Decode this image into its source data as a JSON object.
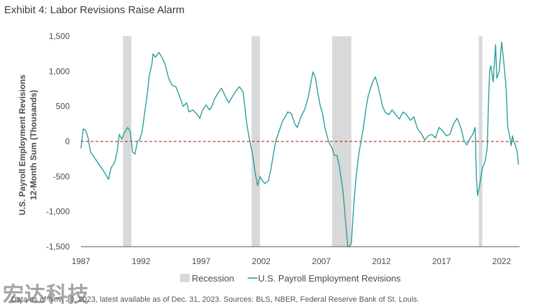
{
  "title": "Exhibit 4: Labor Revisions Raise Alarm",
  "source_note": "Data as of Nov. 30, 2023, latest available as of Dec. 31, 2023. Sources: BLS, NBER, Federal Reserve Bank of St. Louis.",
  "watermark": "宏达科技",
  "colors": {
    "line": "#2a9d9d",
    "recession": "#d9d9d9",
    "zero_line": "#c0392b"
  },
  "chart_data": {
    "type": "line",
    "title": "Exhibit 4: Labor Revisions Raise Alarm",
    "ylabel_lines": [
      "U.S. Payroll Employment Revisions",
      "12-Month Sum (Thousands)"
    ],
    "xlabel": "",
    "x_ticks": [
      "1987",
      "1992",
      "1997",
      "2002",
      "2007",
      "2012",
      "2017",
      "2022"
    ],
    "y_ticks": [
      "1,500",
      "1,000",
      "500",
      "0",
      "-500",
      "-1,000",
      "-1,500"
    ],
    "ylim": [
      -1500,
      1500
    ],
    "xlim": [
      1987,
      2023.5
    ],
    "zero_line": "dashed red at 0",
    "legend": {
      "position": "bottom-center",
      "items": [
        "Recession",
        "U.S. Payroll Employment Revisions"
      ]
    },
    "recessions": [
      [
        1990.5,
        1991.2
      ],
      [
        2001.2,
        2001.9
      ],
      [
        2007.9,
        2009.5
      ],
      [
        2020.1,
        2020.4
      ]
    ],
    "series": [
      {
        "name": "U.S. Payroll Employment Revisions",
        "points": [
          [
            1987.0,
            -100
          ],
          [
            1987.2,
            180
          ],
          [
            1987.4,
            160
          ],
          [
            1987.6,
            50
          ],
          [
            1987.8,
            -150
          ],
          [
            1988.2,
            -250
          ],
          [
            1988.6,
            -350
          ],
          [
            1989.0,
            -450
          ],
          [
            1989.3,
            -540
          ],
          [
            1989.5,
            -380
          ],
          [
            1989.8,
            -300
          ],
          [
            1990.0,
            -160
          ],
          [
            1990.2,
            100
          ],
          [
            1990.4,
            30
          ],
          [
            1990.6,
            120
          ],
          [
            1990.9,
            200
          ],
          [
            1991.1,
            140
          ],
          [
            1991.3,
            -150
          ],
          [
            1991.5,
            -180
          ],
          [
            1991.7,
            0
          ],
          [
            1991.9,
            30
          ],
          [
            1992.1,
            150
          ],
          [
            1992.3,
            400
          ],
          [
            1992.5,
            650
          ],
          [
            1992.7,
            950
          ],
          [
            1992.9,
            1100
          ],
          [
            1993.0,
            1250
          ],
          [
            1993.2,
            1200
          ],
          [
            1993.5,
            1270
          ],
          [
            1993.8,
            1180
          ],
          [
            1994.0,
            1100
          ],
          [
            1994.3,
            900
          ],
          [
            1994.6,
            800
          ],
          [
            1994.9,
            780
          ],
          [
            1995.2,
            650
          ],
          [
            1995.5,
            500
          ],
          [
            1995.8,
            550
          ],
          [
            1996.0,
            420
          ],
          [
            1996.3,
            450
          ],
          [
            1996.6,
            400
          ],
          [
            1996.9,
            330
          ],
          [
            1997.1,
            440
          ],
          [
            1997.4,
            520
          ],
          [
            1997.7,
            450
          ],
          [
            1997.9,
            500
          ],
          [
            1998.1,
            600
          ],
          [
            1998.4,
            690
          ],
          [
            1998.7,
            760
          ],
          [
            1999.0,
            650
          ],
          [
            1999.3,
            550
          ],
          [
            1999.6,
            640
          ],
          [
            1999.9,
            720
          ],
          [
            2000.2,
            780
          ],
          [
            2000.5,
            700
          ],
          [
            2000.8,
            250
          ],
          [
            2001.0,
            50
          ],
          [
            2001.3,
            -200
          ],
          [
            2001.5,
            -450
          ],
          [
            2001.7,
            -630
          ],
          [
            2001.9,
            -500
          ],
          [
            2002.1,
            -560
          ],
          [
            2002.3,
            -600
          ],
          [
            2002.6,
            -560
          ],
          [
            2002.8,
            -400
          ],
          [
            2003.0,
            -200
          ],
          [
            2003.2,
            0
          ],
          [
            2003.5,
            150
          ],
          [
            2003.8,
            300
          ],
          [
            2004.0,
            350
          ],
          [
            2004.2,
            420
          ],
          [
            2004.5,
            400
          ],
          [
            2004.8,
            250
          ],
          [
            2005.0,
            200
          ],
          [
            2005.3,
            350
          ],
          [
            2005.6,
            450
          ],
          [
            2005.9,
            620
          ],
          [
            2006.1,
            800
          ],
          [
            2006.3,
            990
          ],
          [
            2006.5,
            920
          ],
          [
            2006.7,
            700
          ],
          [
            2006.9,
            520
          ],
          [
            2007.1,
            400
          ],
          [
            2007.3,
            200
          ],
          [
            2007.6,
            0
          ],
          [
            2007.9,
            -100
          ],
          [
            2008.1,
            -200
          ],
          [
            2008.3,
            -200
          ],
          [
            2008.5,
            -350
          ],
          [
            2008.8,
            -700
          ],
          [
            2009.0,
            -1100
          ],
          [
            2009.2,
            -1500
          ],
          [
            2009.3,
            -1500
          ],
          [
            2009.5,
            -1450
          ],
          [
            2009.7,
            -900
          ],
          [
            2009.9,
            -500
          ],
          [
            2010.1,
            -200
          ],
          [
            2010.3,
            0
          ],
          [
            2010.5,
            200
          ],
          [
            2010.7,
            450
          ],
          [
            2010.9,
            650
          ],
          [
            2011.1,
            760
          ],
          [
            2011.3,
            860
          ],
          [
            2011.5,
            920
          ],
          [
            2011.7,
            800
          ],
          [
            2011.9,
            650
          ],
          [
            2012.1,
            500
          ],
          [
            2012.3,
            420
          ],
          [
            2012.6,
            380
          ],
          [
            2012.9,
            450
          ],
          [
            2013.2,
            380
          ],
          [
            2013.5,
            320
          ],
          [
            2013.8,
            420
          ],
          [
            2014.1,
            380
          ],
          [
            2014.4,
            300
          ],
          [
            2014.7,
            350
          ],
          [
            2015.0,
            180
          ],
          [
            2015.3,
            120
          ],
          [
            2015.6,
            20
          ],
          [
            2015.9,
            80
          ],
          [
            2016.2,
            100
          ],
          [
            2016.5,
            50
          ],
          [
            2016.8,
            200
          ],
          [
            2017.1,
            150
          ],
          [
            2017.4,
            80
          ],
          [
            2017.7,
            100
          ],
          [
            2018.0,
            250
          ],
          [
            2018.3,
            330
          ],
          [
            2018.6,
            200
          ],
          [
            2018.9,
            0
          ],
          [
            2019.1,
            -50
          ],
          [
            2019.4,
            50
          ],
          [
            2019.6,
            100
          ],
          [
            2019.8,
            200
          ],
          [
            2019.9,
            -500
          ],
          [
            2020.0,
            -770
          ],
          [
            2020.2,
            -600
          ],
          [
            2020.4,
            -380
          ],
          [
            2020.6,
            -300
          ],
          [
            2020.8,
            -100
          ],
          [
            2020.9,
            500
          ],
          [
            2021.0,
            1000
          ],
          [
            2021.1,
            1080
          ],
          [
            2021.3,
            850
          ],
          [
            2021.5,
            1380
          ],
          [
            2021.6,
            900
          ],
          [
            2021.8,
            1000
          ],
          [
            2022.0,
            1420
          ],
          [
            2022.2,
            1100
          ],
          [
            2022.4,
            700
          ],
          [
            2022.5,
            220
          ],
          [
            2022.7,
            50
          ],
          [
            2022.8,
            -60
          ],
          [
            2022.9,
            80
          ],
          [
            2023.0,
            0
          ],
          [
            2023.1,
            -30
          ],
          [
            2023.3,
            -150
          ],
          [
            2023.4,
            -330
          ]
        ]
      }
    ]
  }
}
